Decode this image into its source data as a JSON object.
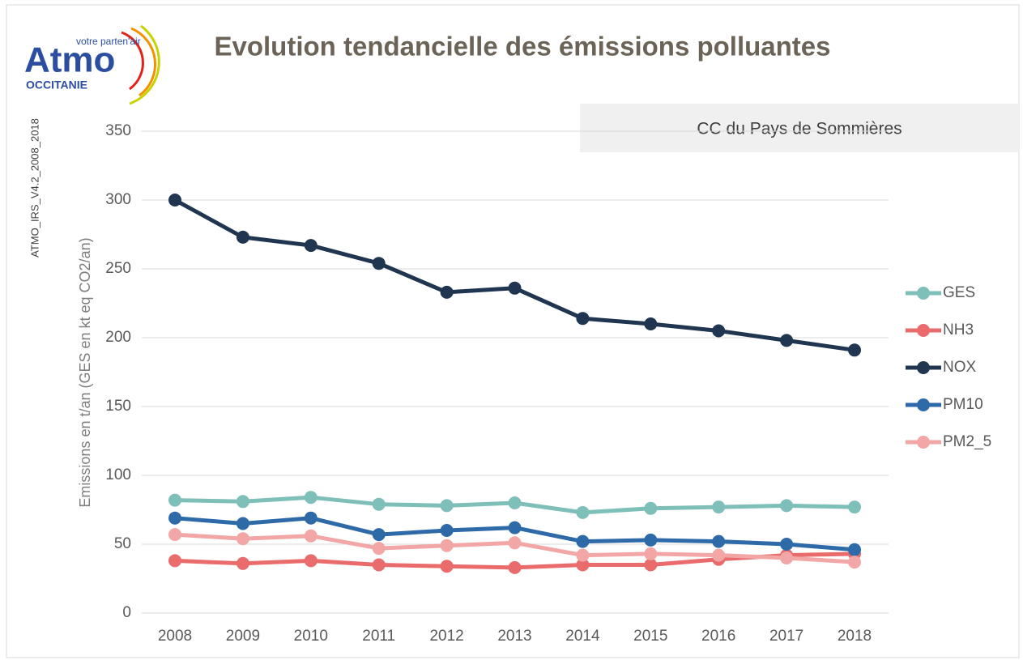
{
  "logo": {
    "tagline": "votre parten'air",
    "name": "Atmo",
    "region": "OCCITANIE"
  },
  "chart_data": {
    "type": "line",
    "title": "Evolution tendancielle des émissions polluantes",
    "subtitle": "CC du Pays de Sommières",
    "side_note": "ATMO_IRS_V4.2_2008_2018",
    "y_label": "Emissions en t/an (GES en kt eq CO2/an)",
    "categories": [
      "2008",
      "2009",
      "2010",
      "2011",
      "2012",
      "2013",
      "2014",
      "2015",
      "2016",
      "2017",
      "2018"
    ],
    "series": [
      {
        "name": "GES",
        "color": "#7fbfb9",
        "values": [
          82,
          81,
          84,
          79,
          78,
          80,
          73,
          76,
          77,
          78,
          77
        ]
      },
      {
        "name": "NH3",
        "color": "#e96b6b",
        "values": [
          38,
          36,
          38,
          35,
          34,
          33,
          35,
          35,
          39,
          42,
          43
        ]
      },
      {
        "name": "NOX",
        "color": "#1f3550",
        "values": [
          300,
          273,
          267,
          254,
          233,
          236,
          214,
          210,
          205,
          198,
          191
        ]
      },
      {
        "name": "PM10",
        "color": "#2e6aa8",
        "values": [
          69,
          65,
          69,
          57,
          60,
          62,
          52,
          53,
          52,
          50,
          46
        ]
      },
      {
        "name": "PM2_5",
        "color": "#f2a6a6",
        "values": [
          57,
          54,
          56,
          47,
          49,
          51,
          42,
          43,
          42,
          40,
          37
        ]
      }
    ],
    "ylim": [
      0,
      350
    ],
    "yticks": [
      0,
      50,
      100,
      150,
      200,
      250,
      300,
      350
    ],
    "grid": true,
    "legend": "right"
  }
}
